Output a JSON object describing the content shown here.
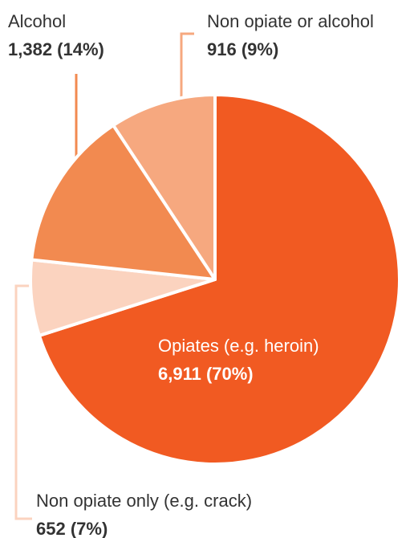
{
  "chart_data": {
    "type": "pie",
    "categories": [
      "Opiates (e.g. heroin)",
      "Non opiate only (e.g. crack)",
      "Alcohol",
      "Non opiate or alcohol"
    ],
    "values": [
      6911,
      652,
      1382,
      916
    ],
    "value_labels": [
      "6,911 (70%)",
      "652 (7%)",
      "1,382 (14%)",
      "916 (9%)"
    ],
    "colors": [
      "#f15a22",
      "#fbd3bf",
      "#f28a50",
      "#f6a87f"
    ]
  }
}
